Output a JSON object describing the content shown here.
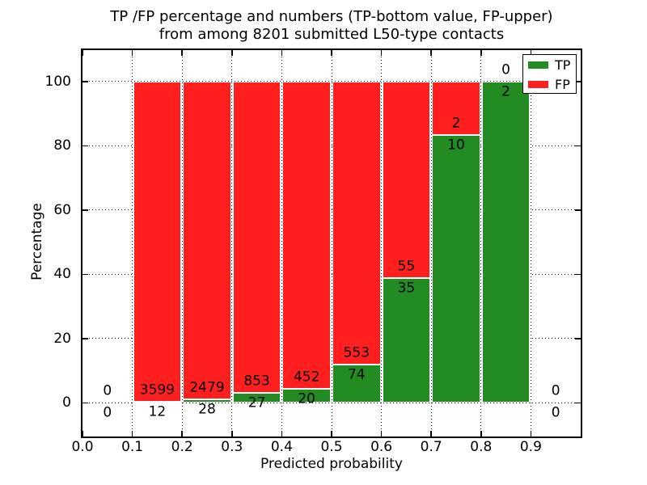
{
  "chart_data": {
    "type": "bar",
    "stacked": "percent",
    "title_line1": "TP /FP percentage and numbers (TP-bottom value, FP-upper)",
    "title_line2": "from among 8201 submitted L50-type contacts",
    "xlabel": "Predicted probability",
    "ylabel": "Percentage",
    "xlim": [
      0.0,
      1.0
    ],
    "ylim": [
      -10.5,
      109.8
    ],
    "grid": "dotted",
    "x_ticks": [
      {
        "value": 0.0,
        "label": "0.0"
      },
      {
        "value": 0.1,
        "label": "0.1"
      },
      {
        "value": 0.2,
        "label": "0.2"
      },
      {
        "value": 0.3,
        "label": "0.3"
      },
      {
        "value": 0.4,
        "label": "0.4"
      },
      {
        "value": 0.5,
        "label": "0.5"
      },
      {
        "value": 0.6,
        "label": "0.6"
      },
      {
        "value": 0.7,
        "label": "0.7"
      },
      {
        "value": 0.8,
        "label": "0.8"
      },
      {
        "value": 0.9,
        "label": "0.9"
      }
    ],
    "y_ticks": [
      {
        "value": 0,
        "label": "0"
      },
      {
        "value": 20,
        "label": "20"
      },
      {
        "value": 40,
        "label": "40"
      },
      {
        "value": 60,
        "label": "60"
      },
      {
        "value": 80,
        "label": "80"
      },
      {
        "value": 100,
        "label": "100"
      }
    ],
    "grid_x": [
      0.1,
      0.2,
      0.3,
      0.4,
      0.5,
      0.6,
      0.7,
      0.8,
      0.9
    ],
    "grid_y": [
      0,
      20,
      40,
      60,
      80,
      100
    ],
    "colors": {
      "tp": "#228b22",
      "fp": "#ff1f1f",
      "bar_edge": "#ffffff"
    },
    "legend": {
      "position": "upper right",
      "items": [
        {
          "label": "TP",
          "color": "#228b22"
        },
        {
          "label": "FP",
          "color": "#ff1f1f"
        }
      ]
    },
    "bins": [
      {
        "x0": 0.0,
        "x1": 0.1,
        "tp": 0,
        "fp": 0,
        "tp_pct": 0,
        "has_bar": false
      },
      {
        "x0": 0.1,
        "x1": 0.2,
        "tp": 12,
        "fp": 3599,
        "tp_pct": 0.33,
        "has_bar": true
      },
      {
        "x0": 0.2,
        "x1": 0.3,
        "tp": 28,
        "fp": 2479,
        "tp_pct": 1.12,
        "has_bar": true
      },
      {
        "x0": 0.3,
        "x1": 0.4,
        "tp": 27,
        "fp": 853,
        "tp_pct": 3.07,
        "has_bar": true
      },
      {
        "x0": 0.4,
        "x1": 0.5,
        "tp": 20,
        "fp": 452,
        "tp_pct": 4.24,
        "has_bar": true
      },
      {
        "x0": 0.5,
        "x1": 0.6,
        "tp": 74,
        "fp": 553,
        "tp_pct": 11.8,
        "has_bar": true
      },
      {
        "x0": 0.6,
        "x1": 0.7,
        "tp": 35,
        "fp": 55,
        "tp_pct": 38.89,
        "has_bar": true
      },
      {
        "x0": 0.7,
        "x1": 0.8,
        "tp": 10,
        "fp": 2,
        "tp_pct": 83.33,
        "has_bar": true
      },
      {
        "x0": 0.8,
        "x1": 0.9,
        "tp": 2,
        "fp": 0,
        "tp_pct": 100,
        "has_bar": true
      },
      {
        "x0": 0.9,
        "x1": 1.0,
        "tp": 0,
        "fp": 0,
        "tp_pct": 0,
        "has_bar": false
      }
    ]
  }
}
